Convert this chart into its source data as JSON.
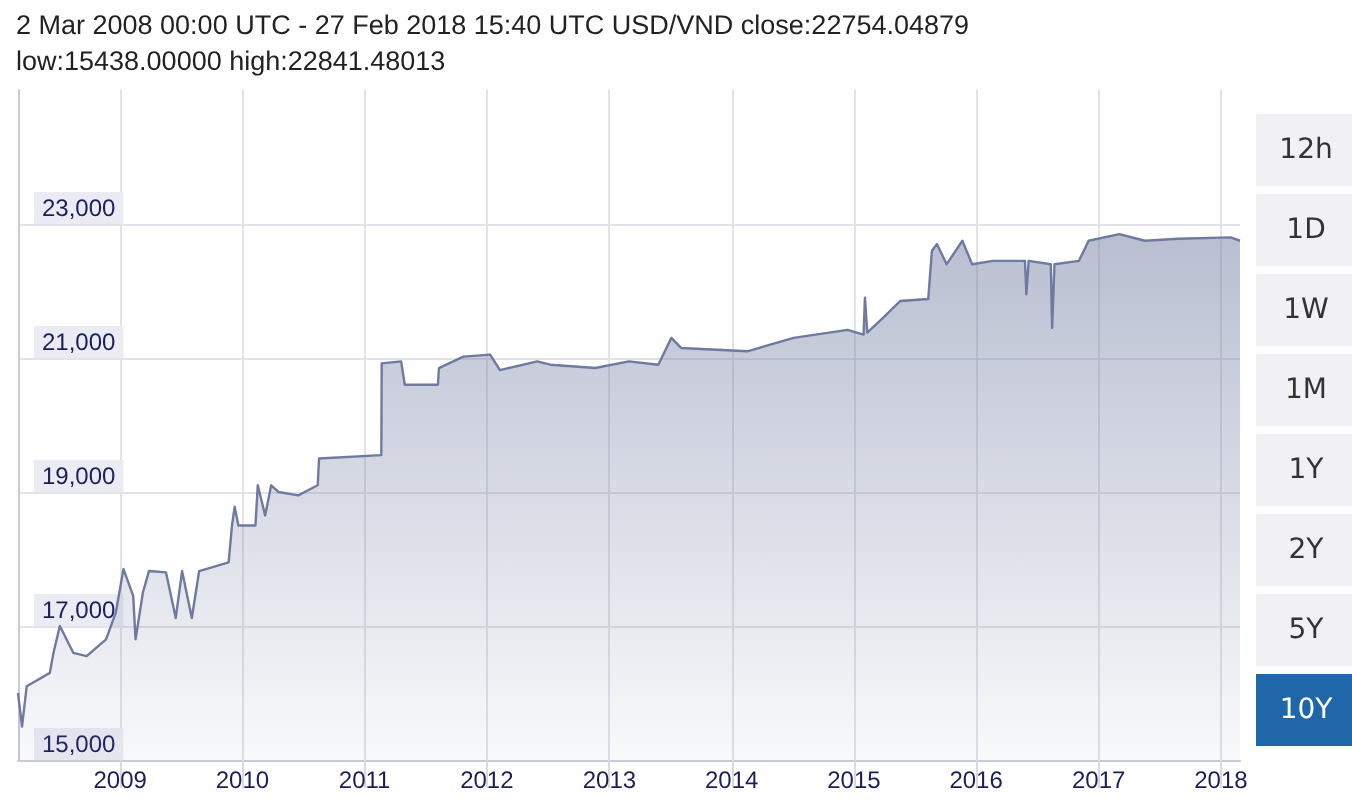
{
  "chart_data": {
    "type": "area",
    "title": "2 Mar 2008 00:00 UTC - 27 Feb 2018 15:40 UTC    USD/VND close:22754.04879 low:15438.00000 high:22841.48013",
    "x": [
      "2008-03-02",
      "2008-03-14",
      "2008-03-28",
      "2008-06-05",
      "2008-06-16",
      "2008-07-05",
      "2008-08-14",
      "2008-09-23",
      "2008-11-20",
      "2008-12-19",
      "2009-01-11",
      "2009-02-09",
      "2009-02-16",
      "2009-03-10",
      "2009-03-28",
      "2009-05-18",
      "2009-06-16",
      "2009-07-05",
      "2009-08-03",
      "2009-08-25",
      "2009-11-21",
      "2009-12-01",
      "2009-12-09",
      "2009-12-20",
      "2010-02-09",
      "2010-02-16",
      "2010-03-10",
      "2010-03-28",
      "2010-04-19",
      "2010-06-17",
      "2010-08-14",
      "2010-08-18",
      "2011-02-20",
      "2011-02-21",
      "2011-04-20",
      "2011-05-01",
      "2011-08-08",
      "2011-08-11",
      "2011-10-23",
      "2012-01-11",
      "2012-02-09",
      "2012-05-30",
      "2012-07-09",
      "2012-11-20",
      "2013-02-28",
      "2013-05-27",
      "2013-07-05",
      "2013-08-03",
      "2014-02-17",
      "2014-07-05",
      "2014-12-13",
      "2015-01-30",
      "2015-02-03",
      "2015-02-10",
      "2015-03-29",
      "2015-05-19",
      "2015-08-11",
      "2015-08-22",
      "2015-09-06",
      "2015-10-05",
      "2015-11-21",
      "2015-12-20",
      "2016-02-20",
      "2016-05-26",
      "2016-05-30",
      "2016-06-06",
      "2016-08-11",
      "2016-08-15",
      "2016-08-22",
      "2016-11-03",
      "2016-12-02",
      "2017-03-04",
      "2017-05-19",
      "2017-08-26",
      "2018-01-30",
      "2018-02-27"
    ],
    "series": [
      {
        "color": "#6e7aa0",
        "values": [
          16000,
          15500,
          16100,
          16300,
          16600,
          17000,
          16600,
          16550,
          16800,
          17200,
          17850,
          17450,
          16800,
          17500,
          17820,
          17800,
          17120,
          17820,
          17120,
          17820,
          17950,
          18500,
          18780,
          18500,
          18500,
          19100,
          18650,
          19100,
          19000,
          18950,
          19100,
          19500,
          19550,
          20920,
          20950,
          20600,
          20600,
          20850,
          21020,
          21050,
          20820,
          20950,
          20900,
          20850,
          20950,
          20900,
          21300,
          21150,
          21100,
          21300,
          21420,
          21350,
          21900,
          21380,
          21600,
          21850,
          21880,
          22600,
          22700,
          22400,
          22750,
          22400,
          22450,
          22450,
          21950,
          22450,
          22400,
          21450,
          22400,
          22450,
          22750,
          22850,
          22750,
          22780,
          22800,
          22750
        ]
      }
    ],
    "xlim": [
      "2008-03-02",
      "2018-02-27"
    ],
    "xticks": [
      {
        "value": "2009",
        "label": "2009"
      },
      {
        "value": "2010",
        "label": "2010"
      },
      {
        "value": "2011",
        "label": "2011"
      },
      {
        "value": "2012",
        "label": "2012"
      },
      {
        "value": "2013",
        "label": "2013"
      },
      {
        "value": "2014",
        "label": "2014"
      },
      {
        "value": "2015",
        "label": "2015"
      },
      {
        "value": "2016",
        "label": "2016"
      },
      {
        "value": "2017",
        "label": "2017"
      },
      {
        "value": "2018",
        "label": "2018"
      }
    ],
    "ylim": [
      15000,
      25000
    ],
    "yticks": [
      {
        "value": 15000,
        "label": "15,000"
      },
      {
        "value": 17000,
        "label": "17,000"
      },
      {
        "value": 19000,
        "label": "19,000"
      },
      {
        "value": 21000,
        "label": "21,000"
      },
      {
        "value": 23000,
        "label": "23,000"
      }
    ],
    "grid": true,
    "marker": "none",
    "annotations": [
      "12h",
      "1D",
      "1W",
      "1M",
      "1Y",
      "2Y",
      "5Y",
      "10Y"
    ]
  }
}
